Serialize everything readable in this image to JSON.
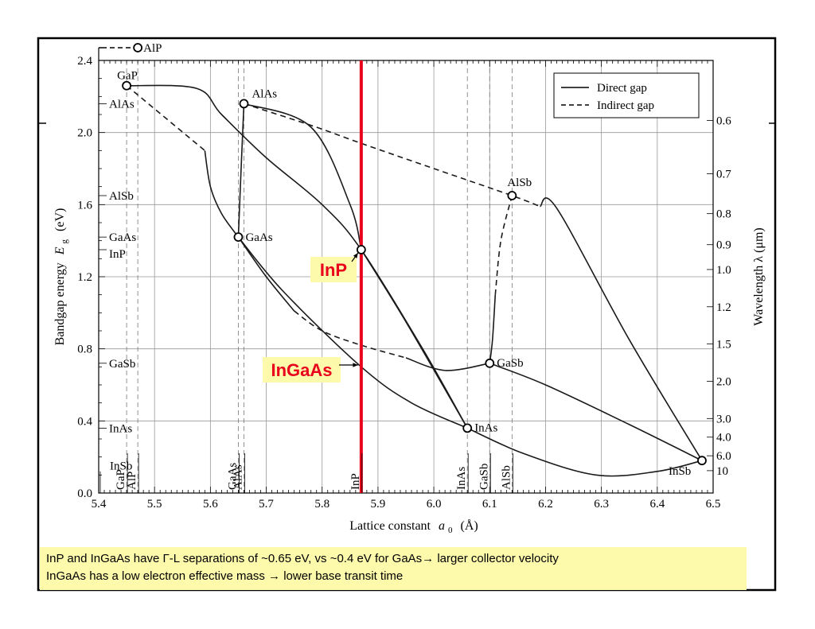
{
  "chart_data": {
    "type": "scatter",
    "xlabel_main": "Lattice constant",
    "xlabel_sym": "a",
    "xlabel_sub": "0",
    "xlabel_unit": "(Å)",
    "ylabel_main": "Bandgap energy",
    "ylabel_sym": "E",
    "ylabel_sub": "g",
    "ylabel_unit": "(eV)",
    "y2label": "Wavelength  λ  (μm)",
    "xlim": [
      5.4,
      6.5
    ],
    "ylim": [
      0.0,
      2.4
    ],
    "x_ticks": [
      "5.4",
      "5.5",
      "5.6",
      "5.7",
      "5.8",
      "5.9",
      "6.0",
      "6.1",
      "6.2",
      "6.3",
      "6.4",
      "6.5"
    ],
    "y_ticks": [
      "0.0",
      "0.4",
      "0.8",
      "1.2",
      "1.6",
      "2.0",
      "2.4"
    ],
    "y2_ticks": [
      {
        "label": "0.6",
        "lambda": 0.6
      },
      {
        "label": "0.7",
        "lambda": 0.7
      },
      {
        "label": "0.8",
        "lambda": 0.8
      },
      {
        "label": "0.9",
        "lambda": 0.9
      },
      {
        "label": "1.0",
        "lambda": 1.0
      },
      {
        "label": "1.2",
        "lambda": 1.2
      },
      {
        "label": "1.5",
        "lambda": 1.5
      },
      {
        "label": "2.0",
        "lambda": 2.0
      },
      {
        "label": "3.0",
        "lambda": 3.0
      },
      {
        "label": "4.0",
        "lambda": 4.0
      },
      {
        "label": "6.0",
        "lambda": 6.0
      },
      {
        "label": "10",
        "lambda": 10
      }
    ],
    "legend": {
      "placement": "top-right",
      "direct": "Direct gap",
      "indirect": "Indirect gap"
    },
    "points": [
      {
        "name": "GaP",
        "a": 5.45,
        "eg": 2.26
      },
      {
        "name": "AlAs",
        "a": 5.66,
        "eg": 2.16
      },
      {
        "name": "GaAs",
        "a": 5.65,
        "eg": 1.42
      },
      {
        "name": "InP",
        "a": 5.87,
        "eg": 1.35
      },
      {
        "name": "AlSb",
        "a": 6.14,
        "eg": 1.65
      },
      {
        "name": "GaSb",
        "a": 6.1,
        "eg": 0.72
      },
      {
        "name": "InAs",
        "a": 6.06,
        "eg": 0.36
      },
      {
        "name": "InSb",
        "a": 6.48,
        "eg": 0.18
      }
    ],
    "offscale_point": {
      "name": "AlP",
      "a": 5.47,
      "eg": 2.45
    },
    "left_axis_markers": [
      {
        "name": "AlAs",
        "eg": 2.16
      },
      {
        "name": "AlSb",
        "eg": 1.65
      },
      {
        "name": "GaAs",
        "eg": 1.42
      },
      {
        "name": "InP",
        "eg": 1.35
      },
      {
        "name": "GaSb",
        "eg": 0.72
      },
      {
        "name": "InAs",
        "eg": 0.36
      }
    ],
    "bottom_labels": [
      {
        "name": "InSb",
        "a": 5.42,
        "row": "upper"
      },
      {
        "name": "GaP",
        "a": 5.45,
        "row": "vertical"
      },
      {
        "name": "AlP",
        "a": 5.47,
        "row": "vertical"
      },
      {
        "name": "GaAs",
        "a": 5.65,
        "row": "vertical"
      },
      {
        "name": "AlAs",
        "a": 5.66,
        "row": "vertical"
      },
      {
        "name": "InP",
        "a": 5.87,
        "row": "vertical"
      },
      {
        "name": "InAs",
        "a": 6.06,
        "row": "vertical"
      },
      {
        "name": "GaSb",
        "a": 6.1,
        "row": "vertical"
      },
      {
        "name": "AlSb",
        "a": 6.14,
        "row": "vertical"
      }
    ],
    "curves": [
      {
        "style": "direct",
        "pts": [
          [
            5.45,
            2.26
          ],
          [
            5.575,
            2.245
          ],
          [
            5.62,
            2.1
          ],
          [
            5.7,
            1.86
          ],
          [
            5.8,
            1.6
          ],
          [
            5.87,
            1.35
          ],
          [
            5.98,
            0.8
          ],
          [
            6.06,
            0.36
          ]
        ]
      },
      {
        "style": "indirect",
        "pts": [
          [
            5.45,
            2.26
          ],
          [
            5.59,
            1.9
          ]
        ]
      },
      {
        "style": "direct",
        "pts": [
          [
            5.59,
            1.9
          ],
          [
            5.6,
            1.7
          ],
          [
            5.62,
            1.55
          ],
          [
            5.65,
            1.42
          ]
        ]
      },
      {
        "style": "direct",
        "pts": [
          [
            5.66,
            2.16
          ],
          [
            5.655,
            1.8
          ],
          [
            5.65,
            1.42
          ]
        ]
      },
      {
        "style": "indirect",
        "pts": [
          [
            5.66,
            2.16
          ],
          [
            5.78,
            2.04
          ],
          [
            5.87,
            1.94
          ],
          [
            6.0,
            1.8
          ],
          [
            6.14,
            1.65
          ],
          [
            6.19,
            1.59
          ]
        ]
      },
      {
        "style": "direct",
        "pts": [
          [
            6.19,
            1.59
          ],
          [
            6.22,
            1.58
          ],
          [
            6.35,
            0.85
          ],
          [
            6.48,
            0.18
          ]
        ]
      },
      {
        "style": "direct",
        "pts": [
          [
            5.66,
            2.16
          ],
          [
            5.78,
            2.03
          ],
          [
            5.85,
            1.6
          ],
          [
            5.87,
            1.35
          ]
        ]
      },
      {
        "style": "direct",
        "pts": [
          [
            5.87,
            1.35
          ],
          [
            5.95,
            0.95
          ],
          [
            6.06,
            0.36
          ]
        ]
      },
      {
        "style": "direct",
        "pts": [
          [
            5.65,
            1.42
          ],
          [
            5.73,
            1.12
          ],
          [
            5.87,
            0.7
          ],
          [
            5.96,
            0.5
          ],
          [
            6.06,
            0.36
          ]
        ]
      },
      {
        "style": "direct",
        "pts": [
          [
            5.65,
            1.42
          ],
          [
            5.7,
            1.2
          ],
          [
            5.75,
            1.01
          ]
        ]
      },
      {
        "style": "indirect",
        "pts": [
          [
            5.75,
            1.01
          ],
          [
            5.8,
            0.9
          ],
          [
            5.87,
            0.82
          ],
          [
            5.95,
            0.75
          ]
        ]
      },
      {
        "style": "direct",
        "pts": [
          [
            5.95,
            0.75
          ],
          [
            6.02,
            0.68
          ],
          [
            6.1,
            0.72
          ]
        ]
      },
      {
        "style": "indirect",
        "pts": [
          [
            6.14,
            1.65
          ],
          [
            6.12,
            1.4
          ],
          [
            6.11,
            1.1
          ]
        ]
      },
      {
        "style": "direct",
        "pts": [
          [
            6.11,
            1.1
          ],
          [
            6.105,
            0.85
          ],
          [
            6.1,
            0.72
          ]
        ]
      },
      {
        "style": "direct",
        "pts": [
          [
            6.1,
            0.72
          ],
          [
            6.2,
            0.6
          ],
          [
            6.35,
            0.38
          ],
          [
            6.48,
            0.18
          ]
        ]
      },
      {
        "style": "direct",
        "pts": [
          [
            6.06,
            0.36
          ],
          [
            6.16,
            0.22
          ],
          [
            6.29,
            0.1
          ],
          [
            6.4,
            0.12
          ],
          [
            6.48,
            0.18
          ]
        ]
      }
    ],
    "highlight": {
      "a": 5.87,
      "color": "#e8001c",
      "labels": [
        {
          "text": "InP",
          "target_eg": 1.35
        },
        {
          "text": "InGaAs",
          "target_eg": 0.72
        }
      ]
    }
  },
  "caption": {
    "line1": "InP and InGaAs have  Γ-L separations of ~0.65 eV, vs ~0.4 eV for GaAs→ larger collector velocity",
    "line2": "InGaAs has a low electron effective mass → lower base transit time",
    "background": "#fdfbab"
  }
}
